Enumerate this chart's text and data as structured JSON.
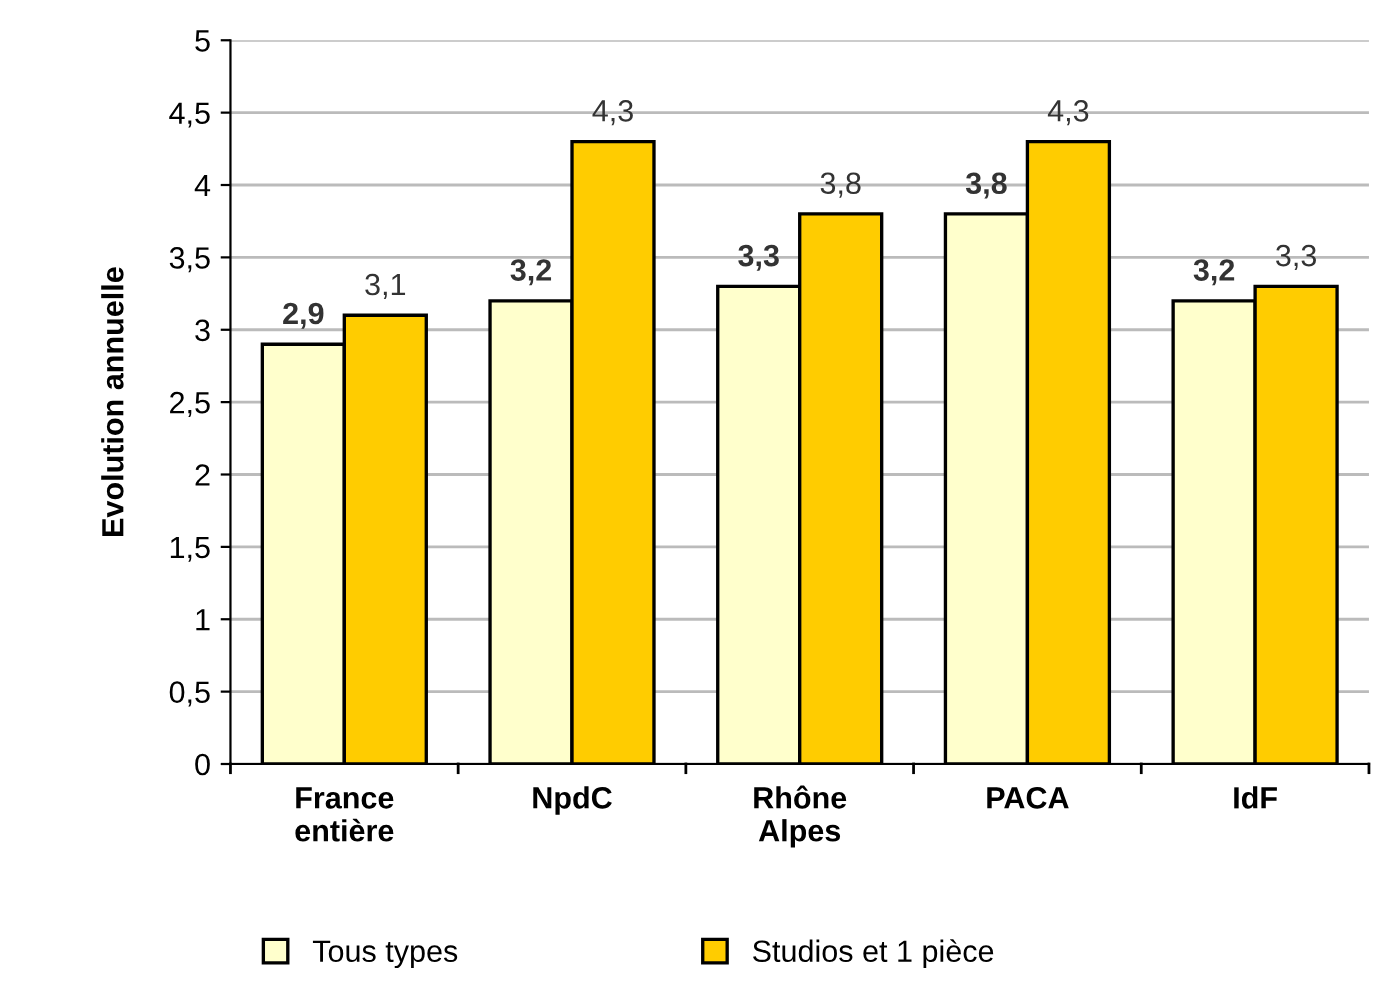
{
  "chart_data": {
    "type": "bar",
    "ylabel": "Evolution annuelle",
    "categories": [
      "France\nentière",
      "NpdC",
      "Rhône\nAlpes",
      "PACA",
      "IdF"
    ],
    "series": [
      {
        "name": "Tous types",
        "color": "#ffffcc",
        "values": [
          2.9,
          3.2,
          3.3,
          3.8,
          3.2
        ],
        "value_labels": [
          "2,9",
          "3,2",
          "3,3",
          "3,8",
          "3,2"
        ]
      },
      {
        "name": "Studios et 1 pièce",
        "color": "#ffcc00",
        "values": [
          3.1,
          4.3,
          3.8,
          4.3,
          3.3
        ],
        "value_labels": [
          "3,1",
          "4,3",
          "3,8",
          "4,3",
          "3,3"
        ]
      }
    ],
    "ylim": [
      0,
      5
    ],
    "yticks": [
      0,
      {
        "value": 0.5,
        "label": "0,5"
      },
      1,
      {
        "value": 1.5,
        "label": "1,5"
      },
      2,
      {
        "value": 2.5,
        "label": "2,5"
      },
      3,
      {
        "value": 3.5,
        "label": "3,5"
      },
      4,
      {
        "value": 4.5,
        "label": "4,5"
      },
      5
    ],
    "grid": "y",
    "legend": "bottom"
  }
}
